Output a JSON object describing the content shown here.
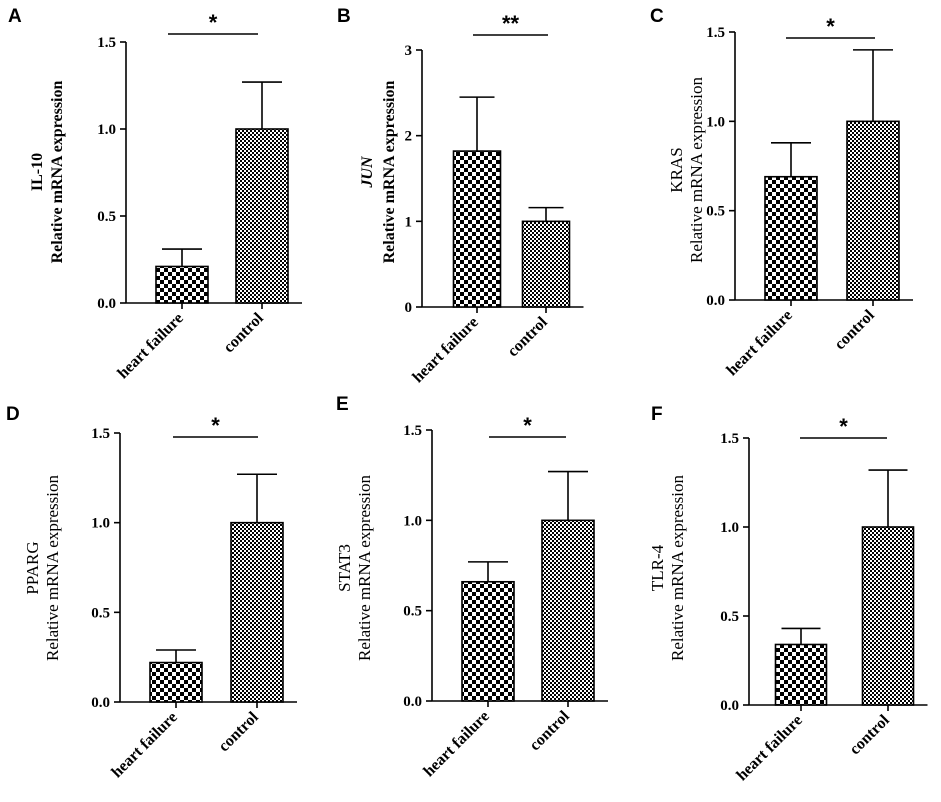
{
  "figure": {
    "panels_description": "Six bar charts of relative mRNA expression, heart failure vs control"
  },
  "chart_data": [
    {
      "panel": "A",
      "type": "bar",
      "gene": "IL-10",
      "gene_italic": false,
      "ylabel_bold": true,
      "ylabel": "Relative mRNA expression",
      "categories": [
        "heart failure",
        "control"
      ],
      "values": [
        0.21,
        1.0
      ],
      "errors": [
        0.1,
        0.27
      ],
      "ylim": [
        0,
        1.5
      ],
      "ticks": [
        0.0,
        0.5,
        1.0,
        1.5
      ],
      "tick_labels": [
        "0.0",
        "0.5",
        "1.0",
        "1.5"
      ],
      "significance": "*"
    },
    {
      "panel": "B",
      "type": "bar",
      "gene": "JUN",
      "gene_italic": true,
      "ylabel_bold": true,
      "ylabel": "Relative mRNA expression",
      "categories": [
        "heart failure",
        "control"
      ],
      "values": [
        1.82,
        1.0
      ],
      "errors": [
        0.63,
        0.16
      ],
      "ylim": [
        0,
        3
      ],
      "ticks": [
        0,
        1,
        2,
        3
      ],
      "tick_labels": [
        "0",
        "1",
        "2",
        "3"
      ],
      "significance": "**"
    },
    {
      "panel": "C",
      "type": "bar",
      "gene": "KRAS",
      "gene_italic": false,
      "ylabel_bold": false,
      "ylabel": "Relative mRNA expression",
      "categories": [
        "heart failure",
        "control"
      ],
      "values": [
        0.69,
        1.0
      ],
      "errors": [
        0.19,
        0.4
      ],
      "ylim": [
        0,
        1.5
      ],
      "ticks": [
        0.0,
        0.5,
        1.0,
        1.5
      ],
      "tick_labels": [
        "0.0",
        "0.5",
        "1.0",
        "1.5"
      ],
      "significance": "*"
    },
    {
      "panel": "D",
      "type": "bar",
      "gene": "PPARG",
      "gene_italic": false,
      "ylabel_bold": false,
      "ylabel": "Relative mRNA expression",
      "categories": [
        "heart failure",
        "control"
      ],
      "values": [
        0.22,
        1.0
      ],
      "errors": [
        0.07,
        0.27
      ],
      "ylim": [
        0,
        1.5
      ],
      "ticks": [
        0.0,
        0.5,
        1.0,
        1.5
      ],
      "tick_labels": [
        "0.0",
        "0.5",
        "1.0",
        "1.5"
      ],
      "significance": "*"
    },
    {
      "panel": "E",
      "type": "bar",
      "gene": "STAT3",
      "gene_italic": false,
      "ylabel_bold": false,
      "ylabel": "Relative mRNA expression",
      "categories": [
        "heart failure",
        "control"
      ],
      "values": [
        0.66,
        1.0
      ],
      "errors": [
        0.11,
        0.27
      ],
      "ylim": [
        0,
        1.5
      ],
      "ticks": [
        0.0,
        0.5,
        1.0,
        1.5
      ],
      "tick_labels": [
        "0.0",
        "0.5",
        "1.0",
        "1.5"
      ],
      "significance": "*"
    },
    {
      "panel": "F",
      "type": "bar",
      "gene": "TLR-4",
      "gene_italic": false,
      "ylabel_bold": false,
      "ylabel": "Relative mRNA expression",
      "categories": [
        "heart failure",
        "control"
      ],
      "values": [
        0.34,
        1.0
      ],
      "errors": [
        0.09,
        0.32
      ],
      "ylim": [
        0,
        1.5
      ],
      "ticks": [
        0.0,
        0.5,
        1.0,
        1.5
      ],
      "tick_labels": [
        "0.0",
        "0.5",
        "1.0",
        "1.5"
      ],
      "significance": "*"
    }
  ],
  "colors": {
    "axis": "#000000",
    "bar_fill_dark": "#000000",
    "bar_fill_light": "#ffffff"
  }
}
